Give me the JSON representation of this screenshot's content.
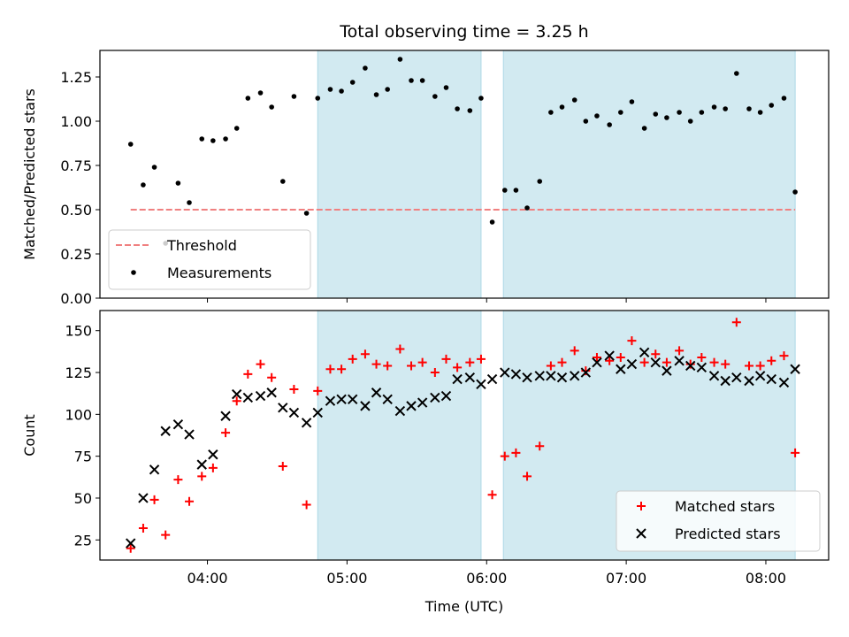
{
  "chart_data": {
    "title": "Total observing time = 3.25 h",
    "xlabel": "Time (UTC)",
    "x_unit": "hours UTC",
    "xlim": [
      3.23,
      8.45
    ],
    "xticks": [
      {
        "value": 4.0,
        "label": "04:00"
      },
      {
        "value": 5.0,
        "label": "05:00"
      },
      {
        "value": 6.0,
        "label": "06:00"
      },
      {
        "value": 7.0,
        "label": "07:00"
      },
      {
        "value": 8.0,
        "label": "08:00"
      }
    ],
    "observing_windows": [
      [
        4.79,
        5.96
      ],
      [
        6.12,
        8.21
      ]
    ],
    "window_color": "#add8e6",
    "times": [
      3.45,
      3.54,
      3.62,
      3.7,
      3.79,
      3.87,
      3.96,
      4.04,
      4.13,
      4.21,
      4.29,
      4.38,
      4.46,
      4.54,
      4.62,
      4.71,
      4.79,
      4.88,
      4.96,
      5.04,
      5.13,
      5.21,
      5.29,
      5.38,
      5.46,
      5.54,
      5.63,
      5.71,
      5.79,
      5.88,
      5.96,
      6.04,
      6.13,
      6.21,
      6.29,
      6.38,
      6.46,
      6.54,
      6.63,
      6.71,
      6.79,
      6.88,
      6.96,
      7.04,
      7.13,
      7.21,
      7.29,
      7.38,
      7.46,
      7.54,
      7.63,
      7.71,
      7.79,
      7.88,
      7.96,
      8.04,
      8.13,
      8.21
    ],
    "charts": [
      {
        "type": "scatter",
        "ylabel": "Matched/Predicted stars",
        "ylim": [
          0.0,
          1.4
        ],
        "yticks": [
          {
            "value": 0.0,
            "label": "0.00"
          },
          {
            "value": 0.25,
            "label": "0.25"
          },
          {
            "value": 0.5,
            "label": "0.50"
          },
          {
            "value": 0.75,
            "label": "0.75"
          },
          {
            "value": 1.0,
            "label": "1.00"
          },
          {
            "value": 1.25,
            "label": "1.25"
          }
        ],
        "threshold": {
          "name": "Threshold",
          "value": 0.5,
          "x_range": [
            3.45,
            8.21
          ],
          "color": "#f08080",
          "style": "dashed"
        },
        "series": [
          {
            "name": "Measurements",
            "marker": "dot",
            "color": "#000000",
            "values": [
              0.87,
              0.64,
              0.74,
              0.31,
              0.65,
              0.54,
              0.9,
              0.89,
              0.9,
              0.96,
              1.13,
              1.16,
              1.08,
              0.66,
              1.14,
              0.48,
              1.13,
              1.18,
              1.17,
              1.22,
              1.3,
              1.15,
              1.18,
              1.35,
              1.23,
              1.23,
              1.14,
              1.19,
              1.07,
              1.06,
              1.13,
              0.43,
              0.61,
              0.61,
              0.51,
              0.66,
              1.05,
              1.08,
              1.12,
              1.0,
              1.03,
              0.98,
              1.05,
              1.11,
              0.96,
              1.04,
              1.02,
              1.05,
              1.0,
              1.05,
              1.08,
              1.07,
              1.27,
              1.07,
              1.05,
              1.09,
              1.13,
              0.6
            ]
          }
        ],
        "legend": {
          "placement": "lower-left",
          "entries": [
            "Threshold",
            "Measurements"
          ]
        }
      },
      {
        "type": "scatter",
        "ylabel": "Count",
        "ylim": [
          13,
          162
        ],
        "yticks": [
          {
            "value": 25,
            "label": "25"
          },
          {
            "value": 50,
            "label": "50"
          },
          {
            "value": 75,
            "label": "75"
          },
          {
            "value": 100,
            "label": "100"
          },
          {
            "value": 125,
            "label": "125"
          },
          {
            "value": 150,
            "label": "150"
          }
        ],
        "series": [
          {
            "name": "Matched stars",
            "marker": "plus",
            "color": "#ff0000",
            "values": [
              20,
              32,
              49,
              28,
              61,
              48,
              63,
              68,
              89,
              108,
              124,
              130,
              122,
              69,
              115,
              46,
              114,
              127,
              127,
              133,
              136,
              130,
              129,
              139,
              129,
              131,
              125,
              133,
              128,
              131,
              133,
              52,
              75,
              77,
              63,
              81,
              129,
              131,
              138,
              126,
              134,
              132,
              134,
              144,
              131,
              136,
              131,
              138,
              130,
              134,
              131,
              130,
              155,
              129,
              129,
              132,
              135,
              77
            ]
          },
          {
            "name": "Predicted stars",
            "marker": "x",
            "color": "#000000",
            "values": [
              23,
              50,
              67,
              90,
              94,
              88,
              70,
              76,
              99,
              112,
              110,
              111,
              113,
              104,
              101,
              95,
              101,
              108,
              109,
              109,
              105,
              113,
              109,
              102,
              105,
              107,
              110,
              111,
              121,
              122,
              118,
              121,
              125,
              124,
              122,
              123,
              123,
              122,
              123,
              125,
              131,
              135,
              127,
              130,
              137,
              131,
              126,
              132,
              129,
              128,
              123,
              120,
              122,
              120,
              123,
              121,
              119,
              127
            ]
          }
        ],
        "legend": {
          "placement": "lower-right",
          "entries": [
            "Matched stars",
            "Predicted stars"
          ]
        }
      }
    ]
  }
}
